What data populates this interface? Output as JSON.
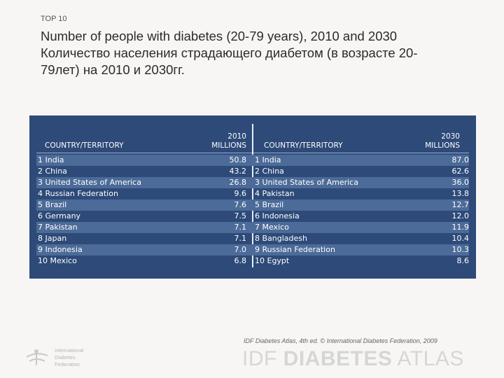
{
  "kicker": "TOP 10",
  "title_lines": [
    "Number of people with diabetes (20-79 years), 2010 and 2030",
    "Количество населения страдающего диабетом (в возрасте 20-",
    "79лет) на 2010 и 2030гг."
  ],
  "table": {
    "left_header": {
      "col_label": "COUNTRY/TERRITORY",
      "year": "2010",
      "unit": "MILLIONS"
    },
    "right_header": {
      "col_label": "COUNTRY/TERRITORY",
      "year": "2030",
      "unit": "MILLIONS"
    },
    "rows_2010": [
      {
        "name": "1 India",
        "value": "50.8"
      },
      {
        "name": "2 China",
        "value": "43.2"
      },
      {
        "name": "3 United States of America",
        "value": "26.8"
      },
      {
        "name": "4 Russian Federation",
        "value": "9.6"
      },
      {
        "name": "5 Brazil",
        "value": "7.6"
      },
      {
        "name": "6 Germany",
        "value": "7.5"
      },
      {
        "name": "7 Pakistan",
        "value": "7.1"
      },
      {
        "name": "8 Japan",
        "value": "7.1"
      },
      {
        "name": "9 Indonesia",
        "value": "7.0"
      },
      {
        "name": "10 Mexico",
        "value": "6.8"
      }
    ],
    "rows_2030": [
      {
        "name": "1 India",
        "value": "87.0"
      },
      {
        "name": "2 China",
        "value": "62.6"
      },
      {
        "name": "3 United States of America",
        "value": "36.0"
      },
      {
        "name": "4 Pakistan",
        "value": "13.8"
      },
      {
        "name": "5 Brazil",
        "value": "12.7"
      },
      {
        "name": "6 Indonesia",
        "value": "12.0"
      },
      {
        "name": "7 Mexico",
        "value": "11.9"
      },
      {
        "name": "8 Bangladesh",
        "value": "10.4"
      },
      {
        "name": "9 Russian Federation",
        "value": "10.3"
      },
      {
        "name": "10 Egypt",
        "value": "8.6"
      }
    ]
  },
  "footer": {
    "source": "IDF Diabetes Atlas, 4th ed. © International Diabetes Federation, 2009",
    "brand_prefix": "IDF ",
    "brand_bold": "DIABETES",
    "brand_suffix": " ATLAS",
    "logo_lines": [
      "International",
      "Diabetes",
      "Federation"
    ]
  },
  "colors": {
    "table_bg": "#2d4a78",
    "row_alt": "#4c6b98"
  }
}
